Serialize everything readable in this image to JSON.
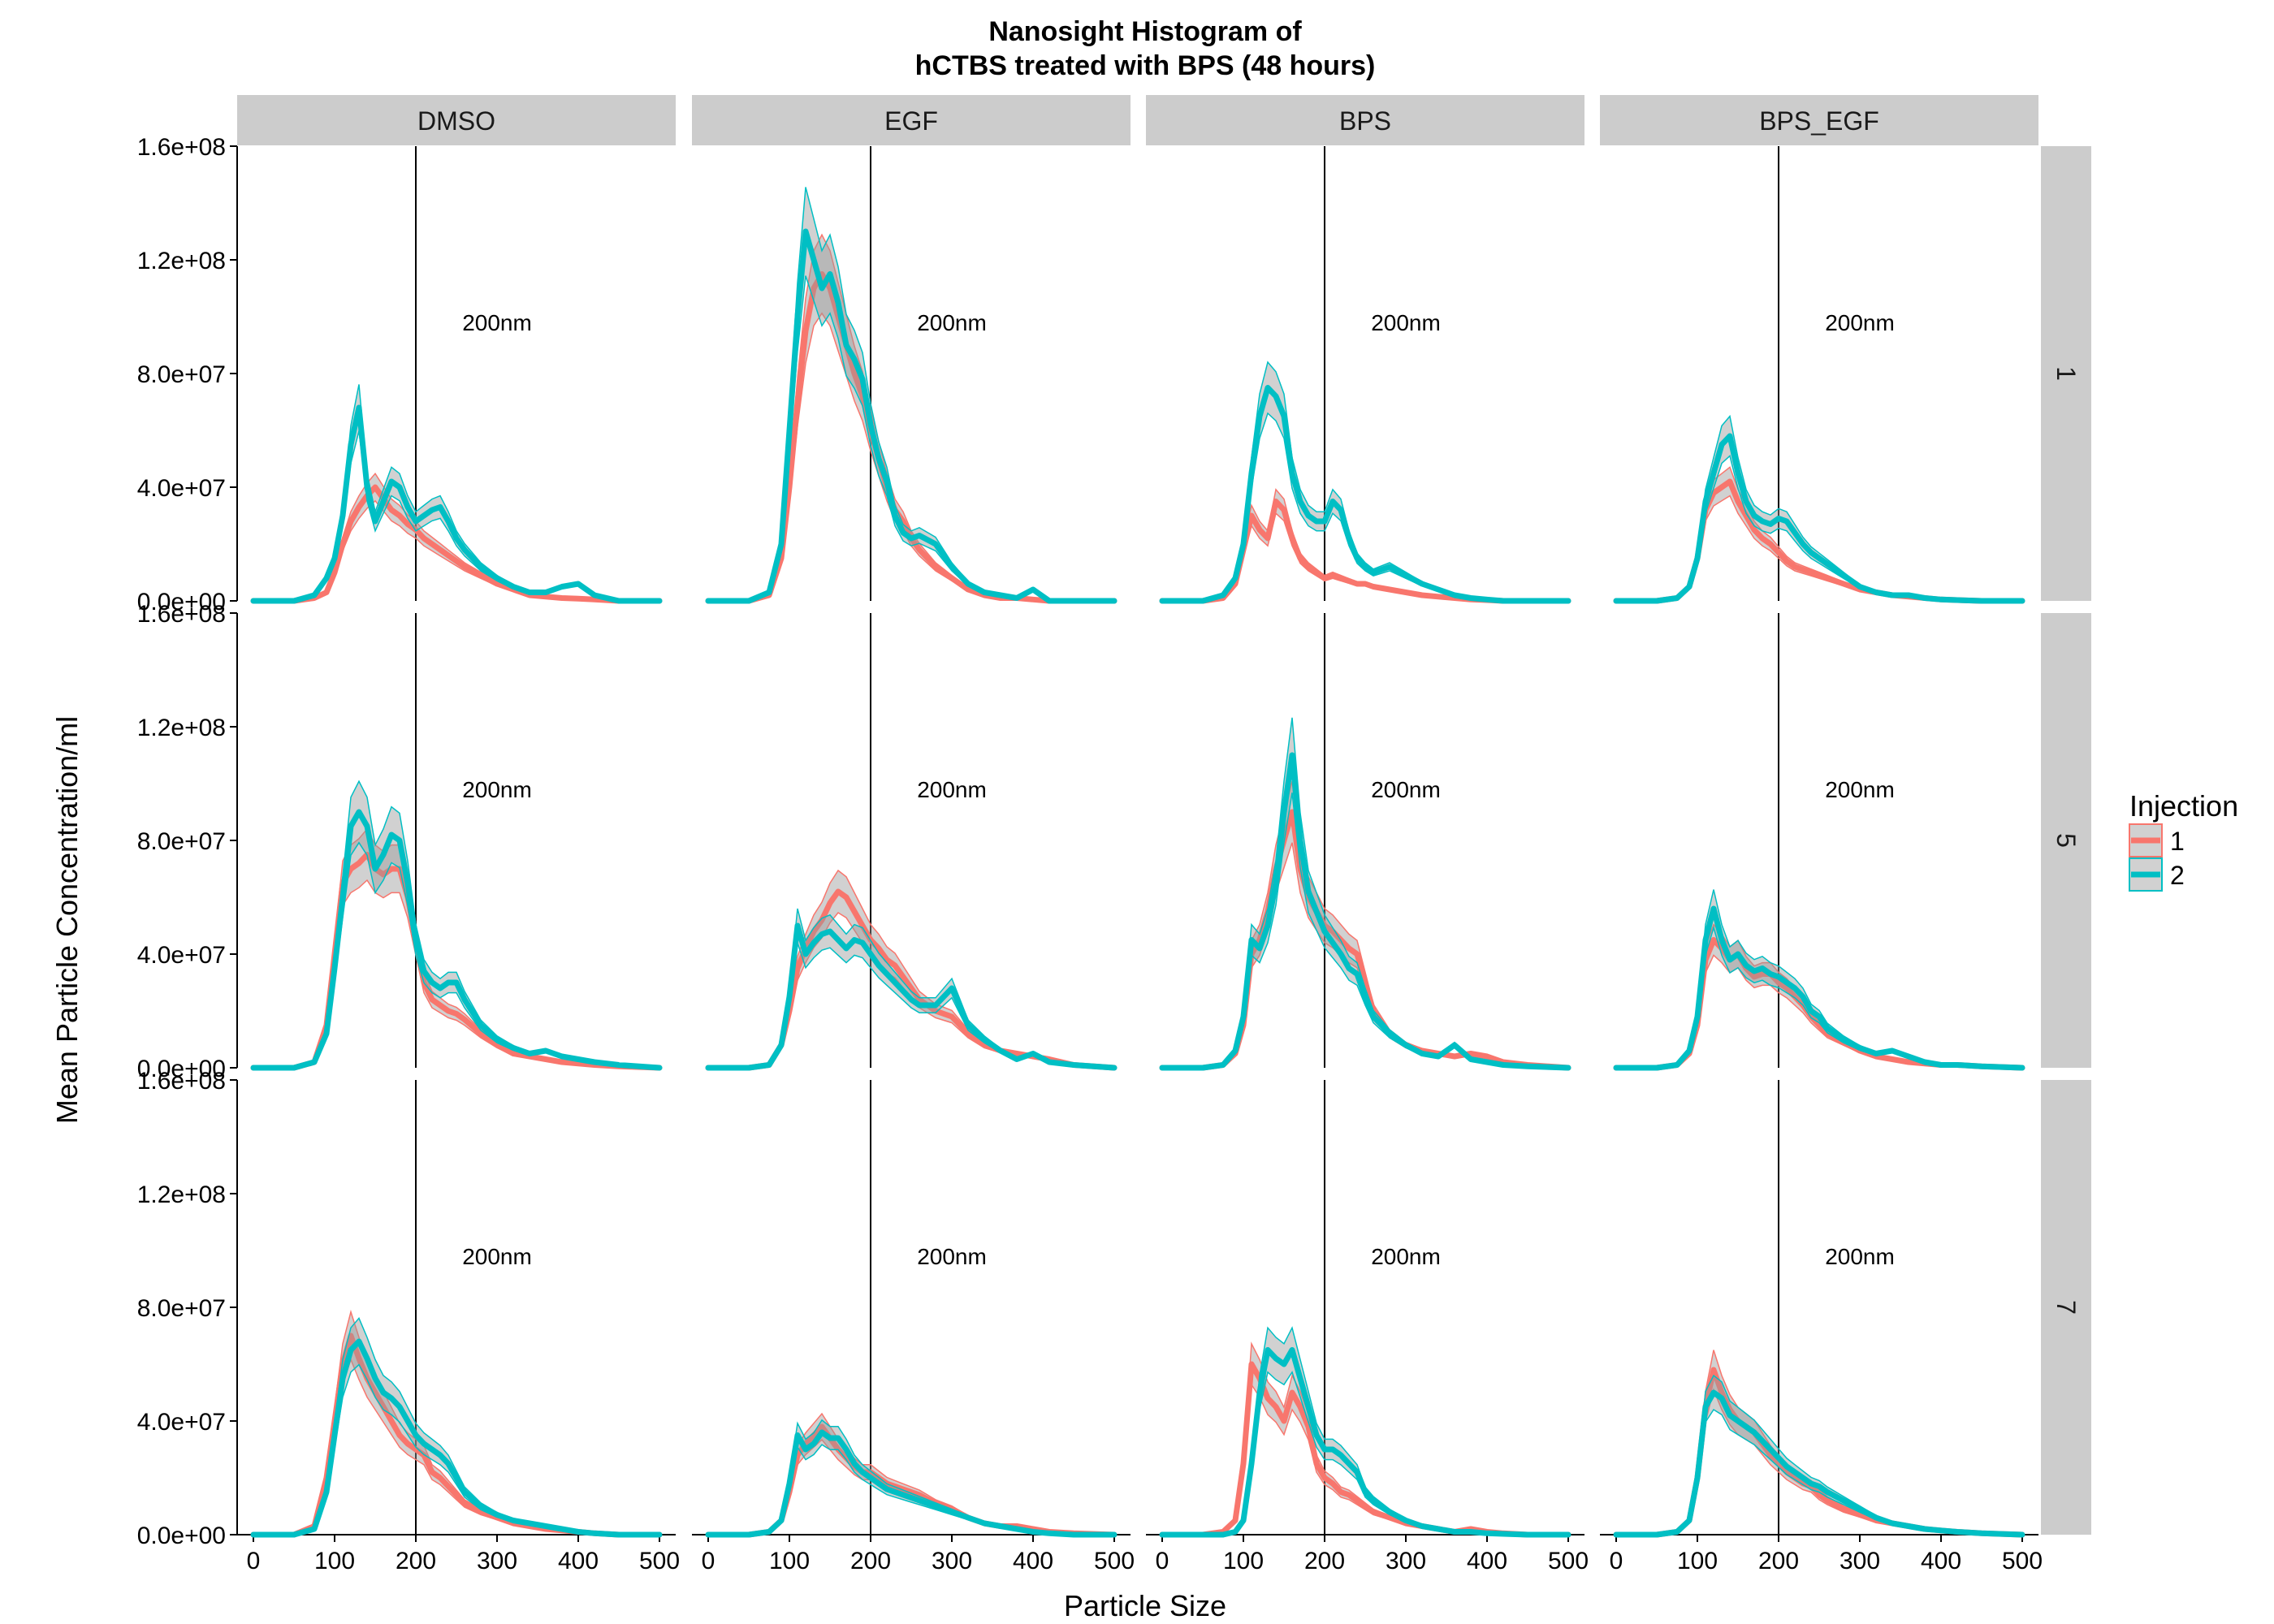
{
  "chart_data": {
    "type": "line",
    "title_lines": [
      "Nanosight Histogram of",
      "hCTBS treated with BPS (48 hours)"
    ],
    "xlabel": "Particle Size",
    "ylabel": "Mean Particle Concentration/ml",
    "xlim": [
      -20,
      520
    ],
    "ylim": [
      0,
      160000000
    ],
    "x_ticks": [
      0,
      100,
      200,
      300,
      400,
      500
    ],
    "x_tick_labels": [
      "0",
      "100",
      "200",
      "300",
      "400",
      "500"
    ],
    "y_ticks": [
      0,
      40000000,
      80000000,
      120000000,
      160000000
    ],
    "y_tick_labels": [
      "0.0e+00",
      "4.0e+07",
      "8.0e+07",
      "1.2e+08",
      "1.6e+08"
    ],
    "columns": [
      "DMSO",
      "EGF",
      "BPS",
      "BPS_EGF"
    ],
    "rows": [
      "1",
      "5",
      "7"
    ],
    "vline_x": 200,
    "annotation": {
      "text": "200nm",
      "x": 300,
      "y": 98000000
    },
    "legend": {
      "title": "Injection",
      "position": "right",
      "entries": [
        "1",
        "2"
      ]
    },
    "colors": {
      "1": "#F8766D",
      "2": "#00BFC4",
      "ribbon": "#999999",
      "strip": "#CCCCCC"
    },
    "grid": false,
    "x": [
      0,
      50,
      75,
      90,
      100,
      110,
      120,
      130,
      140,
      150,
      160,
      170,
      180,
      190,
      200,
      210,
      220,
      230,
      240,
      250,
      260,
      280,
      300,
      320,
      340,
      360,
      380,
      400,
      420,
      450,
      500
    ],
    "panels": [
      {
        "column": "DMSO",
        "row": "1",
        "series": [
          {
            "name": "1",
            "values": [
              0,
              0,
              1,
              3,
              10,
              20,
              28,
              33,
              37,
              40,
              36,
              32,
              30,
              27,
              25,
              22,
              20,
              18,
              16,
              14,
              12,
              9,
              6,
              4,
              2,
              1.5,
              1,
              0.8,
              0.5,
              0,
              0
            ]
          },
          {
            "name": "2",
            "values": [
              0,
              0,
              2,
              8,
              15,
              30,
              55,
              68,
              40,
              28,
              35,
              42,
              40,
              33,
              28,
              30,
              32,
              33,
              28,
              22,
              18,
              12,
              8,
              5,
              3,
              3,
              5,
              6,
              2,
              0,
              0
            ]
          }
        ]
      },
      {
        "column": "EGF",
        "row": "1",
        "series": [
          {
            "name": "1",
            "values": [
              0,
              0,
              2,
              15,
              40,
              70,
              95,
              110,
              115,
              110,
              100,
              90,
              80,
              72,
              60,
              50,
              40,
              32,
              28,
              22,
              18,
              12,
              8,
              4,
              2,
              1,
              1,
              0.5,
              0,
              0,
              0
            ]
          },
          {
            "name": "2",
            "values": [
              0,
              0,
              3,
              20,
              60,
              100,
              130,
              120,
              110,
              115,
              105,
              90,
              85,
              78,
              62,
              50,
              42,
              30,
              24,
              22,
              23,
              20,
              12,
              6,
              3,
              2,
              1,
              4,
              0,
              0,
              0
            ]
          }
        ]
      },
      {
        "column": "BPS",
        "row": "1",
        "series": [
          {
            "name": "1",
            "values": [
              0,
              0,
              1,
              6,
              18,
              30,
              25,
              22,
              35,
              32,
              22,
              15,
              12,
              10,
              8,
              9,
              8,
              7,
              6,
              6,
              5,
              4,
              3,
              2,
              1.5,
              1,
              0.5,
              0.3,
              0,
              0,
              0
            ]
          },
          {
            "name": "2",
            "values": [
              0,
              0,
              2,
              8,
              20,
              45,
              65,
              75,
              72,
              65,
              45,
              35,
              30,
              28,
              28,
              35,
              32,
              22,
              15,
              12,
              10,
              12,
              9,
              6,
              4,
              2,
              1,
              0.5,
              0,
              0,
              0
            ]
          }
        ]
      },
      {
        "column": "BPS_EGF",
        "row": "1",
        "series": [
          {
            "name": "1",
            "values": [
              0,
              0,
              1,
              5,
              15,
              32,
              38,
              40,
              42,
              35,
              30,
              25,
              22,
              20,
              17,
              14,
              12,
              11,
              10,
              9,
              8,
              6,
              4,
              3,
              2,
              1.5,
              1,
              0.5,
              0.3,
              0,
              0
            ]
          },
          {
            "name": "2",
            "values": [
              0,
              0,
              1,
              5,
              15,
              35,
              45,
              55,
              58,
              45,
              35,
              30,
              28,
              27,
              29,
              28,
              24,
              20,
              17,
              15,
              13,
              9,
              5,
              3,
              2,
              2,
              1,
              0.5,
              0.3,
              0,
              0
            ]
          }
        ]
      },
      {
        "column": "DMSO",
        "row": "5",
        "series": [
          {
            "name": "1",
            "values": [
              0,
              0,
              2,
              15,
              40,
              65,
              70,
              72,
              75,
              70,
              68,
              70,
              70,
              60,
              45,
              30,
              24,
              22,
              20,
              19,
              17,
              12,
              8,
              5,
              4,
              3,
              2,
              1.5,
              1,
              0.5,
              0
            ]
          },
          {
            "name": "2",
            "values": [
              0,
              0,
              2,
              12,
              35,
              60,
              85,
              90,
              85,
              70,
              75,
              82,
              80,
              65,
              45,
              34,
              30,
              28,
              30,
              30,
              24,
              15,
              10,
              7,
              5,
              6,
              4,
              3,
              2,
              1,
              0
            ]
          }
        ]
      },
      {
        "column": "EGF",
        "row": "5",
        "series": [
          {
            "name": "1",
            "values": [
              0,
              0,
              1,
              8,
              20,
              35,
              42,
              48,
              52,
              58,
              62,
              60,
              55,
              50,
              45,
              42,
              38,
              36,
              32,
              28,
              24,
              20,
              18,
              12,
              8,
              6,
              5,
              4,
              3,
              1,
              0
            ]
          },
          {
            "name": "2",
            "values": [
              0,
              0,
              1,
              8,
              25,
              50,
              40,
              44,
              47,
              48,
              45,
              42,
              45,
              44,
              40,
              36,
              33,
              30,
              27,
              24,
              22,
              22,
              28,
              15,
              10,
              6,
              3,
              5,
              2,
              1,
              0
            ]
          }
        ]
      },
      {
        "column": "BPS",
        "row": "5",
        "series": [
          {
            "name": "1",
            "values": [
              0,
              0,
              1,
              5,
              15,
              40,
              45,
              55,
              70,
              80,
              90,
              70,
              60,
              55,
              50,
              48,
              45,
              42,
              40,
              30,
              20,
              12,
              8,
              6,
              5,
              4,
              5,
              4,
              2,
              1,
              0
            ]
          },
          {
            "name": "2",
            "values": [
              0,
              0,
              1,
              6,
              18,
              45,
              42,
              50,
              65,
              90,
              110,
              80,
              62,
              55,
              48,
              44,
              40,
              35,
              33,
              25,
              18,
              12,
              8,
              5,
              4,
              8,
              3,
              2,
              1,
              0.5,
              0
            ]
          }
        ]
      },
      {
        "column": "BPS_EGF",
        "row": "5",
        "series": [
          {
            "name": "1",
            "values": [
              0,
              0,
              1,
              5,
              15,
              38,
              45,
              42,
              38,
              40,
              35,
              32,
              33,
              33,
              30,
              28,
              25,
              22,
              18,
              15,
              12,
              9,
              6,
              4,
              3,
              2,
              1.5,
              1,
              1,
              0.5,
              0
            ]
          },
          {
            "name": "2",
            "values": [
              0,
              0,
              1,
              6,
              18,
              45,
              56,
              45,
              38,
              40,
              36,
              34,
              35,
              33,
              32,
              30,
              28,
              25,
              20,
              18,
              14,
              10,
              7,
              5,
              6,
              4,
              2,
              1,
              1,
              0.5,
              0
            ]
          }
        ]
      },
      {
        "column": "DMSO",
        "row": "7",
        "series": [
          {
            "name": "1",
            "values": [
              0,
              0,
              3,
              20,
              40,
              60,
              70,
              62,
              55,
              50,
              45,
              40,
              35,
              32,
              30,
              28,
              22,
              20,
              17,
              14,
              11,
              8,
              6,
              4,
              3,
              2,
              1.5,
              1,
              0.5,
              0,
              0
            ]
          },
          {
            "name": "2",
            "values": [
              0,
              0,
              2,
              15,
              35,
              55,
              65,
              68,
              62,
              55,
              50,
              48,
              45,
              40,
              35,
              32,
              30,
              28,
              25,
              20,
              15,
              10,
              7,
              5,
              4,
              3,
              2,
              1,
              0.5,
              0,
              0
            ]
          }
        ]
      },
      {
        "column": "EGF",
        "row": "7",
        "series": [
          {
            "name": "1",
            "values": [
              0,
              0,
              1,
              5,
              15,
              28,
              32,
              35,
              38,
              34,
              30,
              27,
              24,
              22,
              22,
              20,
              18,
              17,
              16,
              15,
              14,
              11,
              9,
              6,
              4,
              3,
              3,
              2,
              1,
              0.5,
              0
            ]
          },
          {
            "name": "2",
            "values": [
              0,
              0,
              1,
              5,
              18,
              35,
              30,
              32,
              36,
              34,
              34,
              30,
              25,
              22,
              20,
              18,
              16,
              15,
              14,
              13,
              12,
              10,
              8,
              6,
              4,
              3,
              2,
              1,
              0.5,
              0,
              0
            ]
          }
        ]
      },
      {
        "column": "BPS",
        "row": "7",
        "series": [
          {
            "name": "1",
            "values": [
              0,
              0,
              1,
              5,
              25,
              60,
              55,
              48,
              45,
              40,
              50,
              45,
              38,
              25,
              20,
              18,
              15,
              14,
              12,
              10,
              8,
              6,
              4,
              3,
              2,
              1,
              2,
              1,
              0.5,
              0,
              0
            ]
          },
          {
            "name": "2",
            "values": [
              0,
              0,
              0,
              1,
              5,
              25,
              50,
              65,
              62,
              60,
              65,
              55,
              45,
              35,
              30,
              30,
              28,
              25,
              22,
              15,
              12,
              8,
              5,
              3,
              2,
              1,
              1,
              0.5,
              0.3,
              0,
              0
            ]
          }
        ]
      },
      {
        "column": "BPS_EGF",
        "row": "7",
        "series": [
          {
            "name": "1",
            "values": [
              0,
              0,
              1,
              5,
              20,
              45,
              58,
              50,
              44,
              40,
              38,
              36,
              32,
              28,
              25,
              22,
              20,
              18,
              17,
              14,
              12,
              9,
              7,
              5,
              4,
              3,
              2,
              1.5,
              1,
              0.5,
              0
            ]
          },
          {
            "name": "2",
            "values": [
              0,
              0,
              1,
              5,
              20,
              45,
              50,
              48,
              42,
              40,
              38,
              36,
              33,
              30,
              27,
              24,
              22,
              20,
              18,
              17,
              15,
              12,
              9,
              6,
              4,
              3,
              2,
              1.5,
              1,
              0.5,
              0
            ]
          }
        ]
      }
    ]
  }
}
